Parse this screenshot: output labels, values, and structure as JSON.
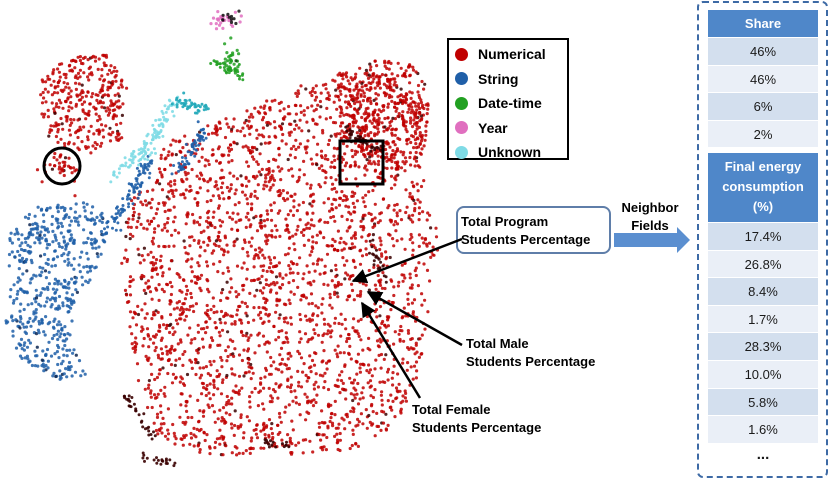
{
  "chart_data": {
    "type": "scatter",
    "title": "",
    "xlabel": "",
    "ylabel": "",
    "grid": false,
    "legend_placement": "top-right",
    "series": [
      {
        "name": "Numerical",
        "color": "#c00000"
      },
      {
        "name": "String",
        "color": "#1f5fa8"
      },
      {
        "name": "Date-time",
        "color": "#22a022"
      },
      {
        "name": "Year",
        "color": "#e06fbf"
      },
      {
        "name": "Unknown",
        "color": "#7fdbe6"
      }
    ],
    "annotations": [
      "Total Program Students Percentage",
      "Total Male Students Percentage",
      "Total Female Students Percentage"
    ]
  },
  "labels": {
    "program_line1": "Total Program",
    "program_line2": "Students Percentage",
    "male_line1": "Total Male",
    "male_line2": "Students Percentage",
    "female_line1": "Total Female",
    "female_line2": "Students Percentage",
    "neighbor_line1": "Neighbor",
    "neighbor_line2": "Fields"
  },
  "table1": {
    "header": "Share",
    "rows": [
      "46%",
      "46%",
      "6%",
      "2%"
    ]
  },
  "table2": {
    "header_line1": "Final energy",
    "header_line2": "consumption",
    "header_line3": "(%)",
    "rows": [
      "17.4%",
      "26.8%",
      "8.4%",
      "1.7%",
      "28.3%",
      "10.0%",
      "5.8%",
      "1.6%"
    ],
    "ellipsis": "..."
  }
}
